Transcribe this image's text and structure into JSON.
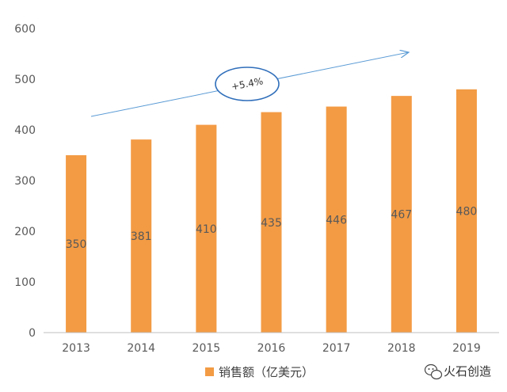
{
  "chart_data": {
    "type": "bar",
    "categories": [
      "2013",
      "2014",
      "2015",
      "2016",
      "2017",
      "2018",
      "2019"
    ],
    "series": [
      {
        "name": "销售额（亿美元）",
        "values": [
          350,
          381,
          410,
          435,
          446,
          467,
          480
        ],
        "color": "#F39B44"
      }
    ],
    "data_labels": [
      "350",
      "381",
      "410",
      "435",
      "446",
      "467",
      "480"
    ],
    "ylim": [
      0,
      600
    ],
    "yticks": [
      0,
      100,
      200,
      300,
      400,
      500,
      600
    ],
    "ytick_labels": [
      "0",
      "100",
      "200",
      "300",
      "400",
      "500",
      "600"
    ],
    "grid": false,
    "legend_position": "bottom",
    "annotation": {
      "text": "+5.4%",
      "kind": "trend-arrow"
    },
    "title": "",
    "xlabel": "",
    "ylabel": ""
  },
  "colors": {
    "axis": "#BFBFBF",
    "arrow": "#5B9BD5",
    "ellipse": "#2F6EBA"
  },
  "watermark": {
    "text": "火石创造",
    "icon": "wechat-icon"
  }
}
